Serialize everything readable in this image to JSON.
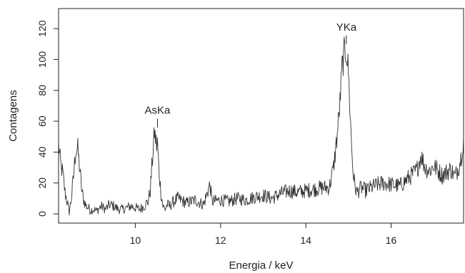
{
  "chart_data": {
    "type": "line",
    "title": "",
    "xlabel": "Energia / keV",
    "ylabel": "Contagens",
    "xlim": [
      8.2,
      17.7
    ],
    "ylim": [
      -6,
      133
    ],
    "xticks": [
      10,
      12,
      14,
      16
    ],
    "yticks": [
      0,
      20,
      40,
      60,
      80,
      100,
      120
    ],
    "grid": false,
    "line_color": "#333333",
    "annotations": [
      {
        "label": "AsKa",
        "x": 10.52,
        "y": 56
      },
      {
        "label": "YKa",
        "x": 14.95,
        "y": 110
      }
    ],
    "series": [
      {
        "x": [
          8.2,
          8.25,
          8.3,
          8.35,
          8.4,
          8.45,
          8.5,
          8.55,
          8.6,
          8.65,
          8.7,
          8.75,
          8.8,
          8.85,
          8.9,
          8.95,
          9.0,
          9.1,
          9.2,
          9.3,
          9.4,
          9.5,
          9.6,
          9.7,
          9.8,
          9.9,
          10.0,
          10.1,
          10.2,
          10.3,
          10.35,
          10.4,
          10.45,
          10.5,
          10.52,
          10.55,
          10.6,
          10.65,
          10.7,
          10.75,
          10.8,
          10.9,
          11.0,
          11.2,
          11.4,
          11.6,
          11.75,
          11.8,
          12.0,
          12.2,
          12.4,
          12.6,
          12.8,
          13.0,
          13.2,
          13.4,
          13.6,
          13.8,
          14.0,
          14.2,
          14.4,
          14.55,
          14.65,
          14.7,
          14.75,
          14.8,
          14.85,
          14.9,
          14.95,
          15.0,
          15.05,
          15.1,
          15.15,
          15.2,
          15.3,
          15.4,
          15.6,
          15.8,
          16.0,
          16.2,
          16.4,
          16.6,
          16.7,
          16.8,
          16.9,
          17.0,
          17.2,
          17.4,
          17.5,
          17.6,
          17.65,
          17.7
        ],
        "values": [
          45,
          32,
          26,
          14,
          8,
          1,
          10,
          24,
          41,
          42,
          28,
          14,
          8,
          5,
          4,
          2,
          3,
          2,
          5,
          3,
          6,
          5,
          3,
          3,
          4,
          5,
          4,
          3,
          5,
          8,
          15,
          35,
          53,
          44,
          46,
          30,
          14,
          5,
          3,
          6,
          5,
          8,
          10,
          7,
          9,
          6,
          19,
          8,
          9,
          8,
          10,
          9,
          11,
          12,
          10,
          13,
          15,
          14,
          15,
          16,
          17,
          17,
          30,
          42,
          55,
          72,
          95,
          104,
          106,
          92,
          58,
          30,
          18,
          14,
          17,
          15,
          18,
          20,
          19,
          18,
          23,
          28,
          38,
          30,
          28,
          31,
          25,
          29,
          24,
          32,
          38,
          50
        ]
      }
    ]
  }
}
